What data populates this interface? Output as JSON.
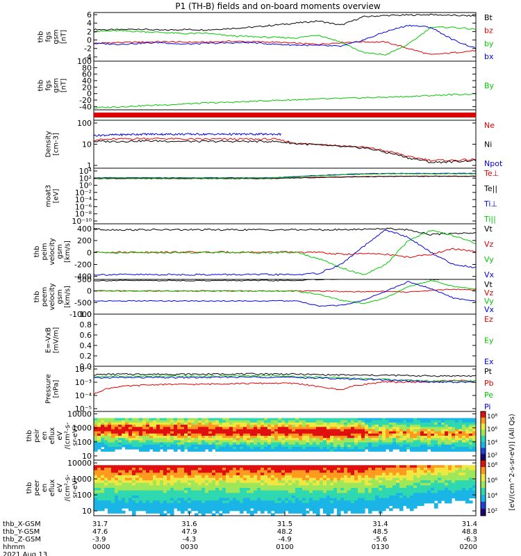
{
  "title": "P1 (TH-B) fields and on-board moments overview",
  "colors": {
    "black": "#000000",
    "red": "#e00000",
    "green": "#00c800",
    "blue": "#0000e0"
  },
  "chart_data": [
    {
      "type": "line",
      "ylabel": [
        "thb",
        "fgs",
        "gsm",
        "[nT]"
      ],
      "ylim": [
        -5,
        6.5
      ],
      "yticks": [
        "6",
        "4",
        "2",
        "0",
        "-2",
        "-4"
      ],
      "series": [
        {
          "name": "Bt",
          "color": "black",
          "values": [
            2.5,
            2.4,
            2.6,
            2.3,
            2.5,
            2.4,
            2.7,
            3.0,
            3.5,
            4.0,
            4.5,
            3.5,
            5.5,
            5.8,
            5.9,
            6.0,
            5.8,
            5.7
          ]
        },
        {
          "name": "bz",
          "color": "red",
          "values": [
            -0.8,
            -0.6,
            -0.5,
            -0.4,
            -0.5,
            -0.5,
            -0.3,
            -0.4,
            -0.5,
            -0.8,
            -1.0,
            -0.6,
            -0.4,
            -0.5,
            -2.0,
            -3.5,
            -3.0,
            -2.5
          ]
        },
        {
          "name": "by",
          "color": "green",
          "values": [
            2.0,
            2.2,
            2.0,
            1.8,
            1.5,
            1.6,
            1.0,
            0.8,
            0.6,
            0.5,
            1.2,
            -0.5,
            -3.0,
            -3.5,
            -1.0,
            3.0,
            3.0,
            2.5
          ]
        },
        {
          "name": "bx",
          "color": "blue",
          "values": [
            -0.8,
            -1.0,
            -0.8,
            -0.6,
            -1.0,
            -0.8,
            -0.7,
            -0.6,
            -1.0,
            -1.2,
            -1.3,
            -1.5,
            0.0,
            2.0,
            3.5,
            3.0,
            0.0,
            -2.0
          ]
        }
      ]
    },
    {
      "type": "line",
      "ylabel": [
        "thb",
        "fgs",
        "gsm",
        "[nT]"
      ],
      "ylim": [
        -50,
        100
      ],
      "yticks": [
        "100",
        "80",
        "60",
        "40",
        "20",
        "0",
        "-20",
        "-40"
      ],
      "series": [
        {
          "name": "By",
          "color": "green",
          "values": [
            -44,
            -41,
            -38,
            -35,
            -32,
            -29,
            -27,
            -24,
            -21,
            -19,
            -17,
            -15,
            -13,
            -11,
            -9,
            -6,
            -3,
            -1
          ]
        }
      ]
    },
    {
      "type": "line",
      "ylabel": [
        "Density",
        "[cm-3]"
      ],
      "yscale": "log",
      "ylim": [
        0.1,
        200
      ],
      "yticks": [
        "100",
        "10",
        "1"
      ],
      "series": [
        {
          "name": "Ne",
          "color": "red",
          "values": [
            9,
            10,
            11,
            11,
            10,
            10,
            10,
            10,
            10,
            5,
            4.5,
            3.5,
            2.8,
            1.5,
            0.6,
            0.35,
            0.35,
            0.4
          ]
        },
        {
          "name": "Ni",
          "color": "black",
          "values": [
            7,
            7,
            7.5,
            7.5,
            7,
            7,
            7,
            7,
            7,
            5,
            4,
            3,
            2.5,
            1.2,
            0.5,
            0.25,
            0.28,
            0.35
          ]
        },
        {
          "name": "Npot",
          "color": "blue",
          "values": [
            18,
            20,
            22,
            22,
            22,
            22,
            22,
            22,
            22
          ]
        }
      ]
    },
    {
      "type": "line",
      "ylabel": [
        "moat3",
        "[eV]"
      ],
      "yscale": "log",
      "ylim": [
        1e-10,
        10000
      ],
      "yticks": [
        "10⁴",
        "10²",
        "10⁰",
        "10⁻²",
        "10⁻⁴",
        "10⁻⁶",
        "10⁻⁸",
        "10⁻¹⁰"
      ],
      "series": [
        {
          "name": "Te⊥",
          "color": "red",
          "values": [
            30,
            30,
            30,
            30,
            30,
            30,
            30,
            30,
            30,
            40,
            50,
            60,
            80,
            90,
            100,
            100,
            100,
            100
          ]
        },
        {
          "name": "Te||",
          "color": "black",
          "values": [
            25,
            25,
            25,
            25,
            25,
            25,
            25,
            25,
            25,
            35,
            45,
            55,
            70,
            80,
            90,
            90,
            90,
            90
          ]
        },
        {
          "name": "Ti⊥",
          "color": "blue",
          "values": [
            40,
            40,
            40,
            40,
            40,
            40,
            40,
            40,
            40,
            80,
            150,
            250,
            400,
            500,
            500,
            500,
            500,
            500
          ]
        },
        {
          "name": "Ti||",
          "color": "green",
          "values": [
            35,
            35,
            35,
            35,
            35,
            35,
            35,
            35,
            35,
            60,
            120,
            200,
            300,
            400,
            400,
            400,
            400,
            400
          ]
        }
      ]
    },
    {
      "type": "line",
      "ylabel": [
        "thb",
        "peim",
        "velocity",
        "gsm",
        "[km/s]"
      ],
      "ylim": [
        -450,
        480
      ],
      "yticks": [
        "400",
        "200",
        "0",
        "-200",
        "-400"
      ],
      "series": [
        {
          "name": "Vt",
          "color": "black",
          "values": [
            390,
            380,
            380,
            380,
            380,
            380,
            380,
            380,
            380,
            380,
            380,
            380,
            390,
            400,
            380,
            300,
            320,
            330
          ]
        },
        {
          "name": "Vz",
          "color": "red",
          "values": [
            5,
            5,
            5,
            5,
            5,
            5,
            5,
            5,
            5,
            5,
            0,
            -30,
            -20,
            -30,
            -80,
            -30,
            60,
            20
          ]
        },
        {
          "name": "Vy",
          "color": "green",
          "values": [
            0,
            0,
            0,
            0,
            0,
            0,
            0,
            0,
            0,
            0,
            -100,
            -250,
            -380,
            -200,
            200,
            370,
            280,
            150
          ]
        },
        {
          "name": "Vx",
          "color": "blue",
          "values": [
            -370,
            -370,
            -370,
            -370,
            -370,
            -370,
            -370,
            -370,
            -370,
            -370,
            -350,
            -200,
            100,
            380,
            250,
            0,
            -200,
            -250
          ]
        }
      ]
    },
    {
      "type": "line",
      "ylabel": [
        "thb",
        "peem",
        "velocity",
        "gsm",
        "[km/s]"
      ],
      "ylim": [
        -1000,
        500
      ],
      "yticks": [
        "500",
        "0",
        "-500",
        "-1000"
      ],
      "series": [
        {
          "name": "Vt",
          "color": "black",
          "values": [
            450,
            450,
            450,
            450,
            450,
            450,
            450,
            450,
            450,
            450,
            500,
            520,
            530,
            540,
            540,
            500,
            520,
            540
          ]
        },
        {
          "name": "Vz",
          "color": "red",
          "values": [
            0,
            0,
            0,
            0,
            0,
            0,
            0,
            0,
            0,
            0,
            0,
            -20,
            -30,
            -10,
            -50,
            20,
            80,
            50
          ]
        },
        {
          "name": "Vy",
          "color": "green",
          "values": [
            0,
            0,
            0,
            0,
            0,
            0,
            0,
            0,
            0,
            0,
            -150,
            -400,
            -550,
            -300,
            200,
            450,
            200,
            80
          ]
        },
        {
          "name": "Vx",
          "color": "blue",
          "values": [
            -430,
            -430,
            -430,
            -430,
            -430,
            -430,
            -430,
            -430,
            -430,
            -430,
            -650,
            -620,
            -400,
            0,
            400,
            100,
            -300,
            -450
          ]
        }
      ]
    },
    {
      "type": "line",
      "ylabel": [
        "E=-VxB",
        "[mV/m]"
      ],
      "ylim": [
        0,
        1
      ],
      "yticks": [
        "1.0",
        "0.8",
        "0.6",
        "0.4",
        "0.2",
        "0.0"
      ],
      "series": [
        {
          "name": "Ez",
          "color": "red",
          "values": []
        },
        {
          "name": "Ey",
          "color": "green",
          "values": []
        },
        {
          "name": "Ex",
          "color": "blue",
          "values": []
        }
      ]
    },
    {
      "type": "line",
      "ylabel": [
        "Pressure",
        "[nPa]"
      ],
      "yscale": "log",
      "ylim": [
        1e-05,
        0.1
      ],
      "yticks": [
        "10⁻²",
        "10⁻³",
        "10⁻⁴",
        "10⁻⁵"
      ],
      "series": [
        {
          "name": "Pt",
          "color": "black",
          "values": [
            0.018,
            0.02,
            0.02,
            0.02,
            0.02,
            0.02,
            0.021,
            0.021,
            0.021,
            0.02,
            0.018,
            0.017,
            0.016,
            0.016,
            0.015,
            0.014,
            0.014,
            0.014
          ]
        },
        {
          "name": "Pb",
          "color": "red",
          "values": [
            0.0003,
            0.0015,
            0.002,
            0.0025,
            0.0025,
            0.0026,
            0.003,
            0.003,
            0.0032,
            0.003,
            0.0015,
            0.0008,
            0.0025,
            0.004,
            0.004,
            0.004,
            0.006,
            0.004
          ]
        },
        {
          "name": "Pe",
          "color": "green",
          "values": [
            0.012,
            0.013,
            0.013,
            0.013,
            0.013,
            0.013,
            0.014,
            0.014,
            0.014,
            0.012,
            0.011,
            0.01,
            0.008,
            0.007,
            0.006,
            0.005,
            0.005,
            0.005
          ]
        },
        {
          "name": "Pi",
          "color": "blue",
          "values": [
            0.009,
            0.01,
            0.01,
            0.01,
            0.01,
            0.01,
            0.011,
            0.011,
            0.011,
            0.01,
            0.009,
            0.008,
            0.007,
            0.006,
            0.005,
            0.004,
            0.004,
            0.004
          ]
        }
      ]
    },
    {
      "type": "heatmap",
      "ylabel": [
        "thb",
        "peir",
        "en",
        "eflux",
        "eV",
        "/(cm²-s-",
        "sr-eV)"
      ],
      "yscale": "log",
      "ylim": [
        5,
        15000
      ],
      "yticks": [
        "10000",
        "1000",
        "100",
        "10"
      ]
    },
    {
      "type": "heatmap",
      "ylabel": [
        "thb",
        "peer",
        "en",
        "eflux",
        "eV",
        "/(cm²-s-",
        "sr-eV)"
      ],
      "yscale": "log",
      "ylim": [
        5,
        15000
      ],
      "yticks": [
        "10000",
        "1000",
        "100",
        "10"
      ]
    }
  ],
  "colorbar": {
    "label": "[eV/(cm^2-s-sr-eV)] (All Qs)",
    "ticks_upper": [
      "10⁸",
      "10⁶",
      "10⁴",
      "10²"
    ],
    "ticks_lower": [
      "10⁸",
      "10⁶",
      "10⁴",
      "10²"
    ]
  },
  "x_axis": {
    "rows": [
      {
        "label": "thb_X-GSM",
        "values": [
          "31.7",
          "31.6",
          "31.5",
          "31.4",
          "31.4"
        ]
      },
      {
        "label": "thb_Y-GSM",
        "values": [
          "47.6",
          "47.9",
          "48.2",
          "48.5",
          "48.8"
        ]
      },
      {
        "label": "thb_Z-GSM",
        "values": [
          "-3.9",
          "-4.3",
          "-4.9",
          "-5.6",
          "-6.3"
        ]
      },
      {
        "label": "hhmm",
        "values": [
          "0000",
          "0030",
          "0100",
          "0130",
          "0200"
        ]
      }
    ],
    "date": "2021 Aug 13"
  }
}
